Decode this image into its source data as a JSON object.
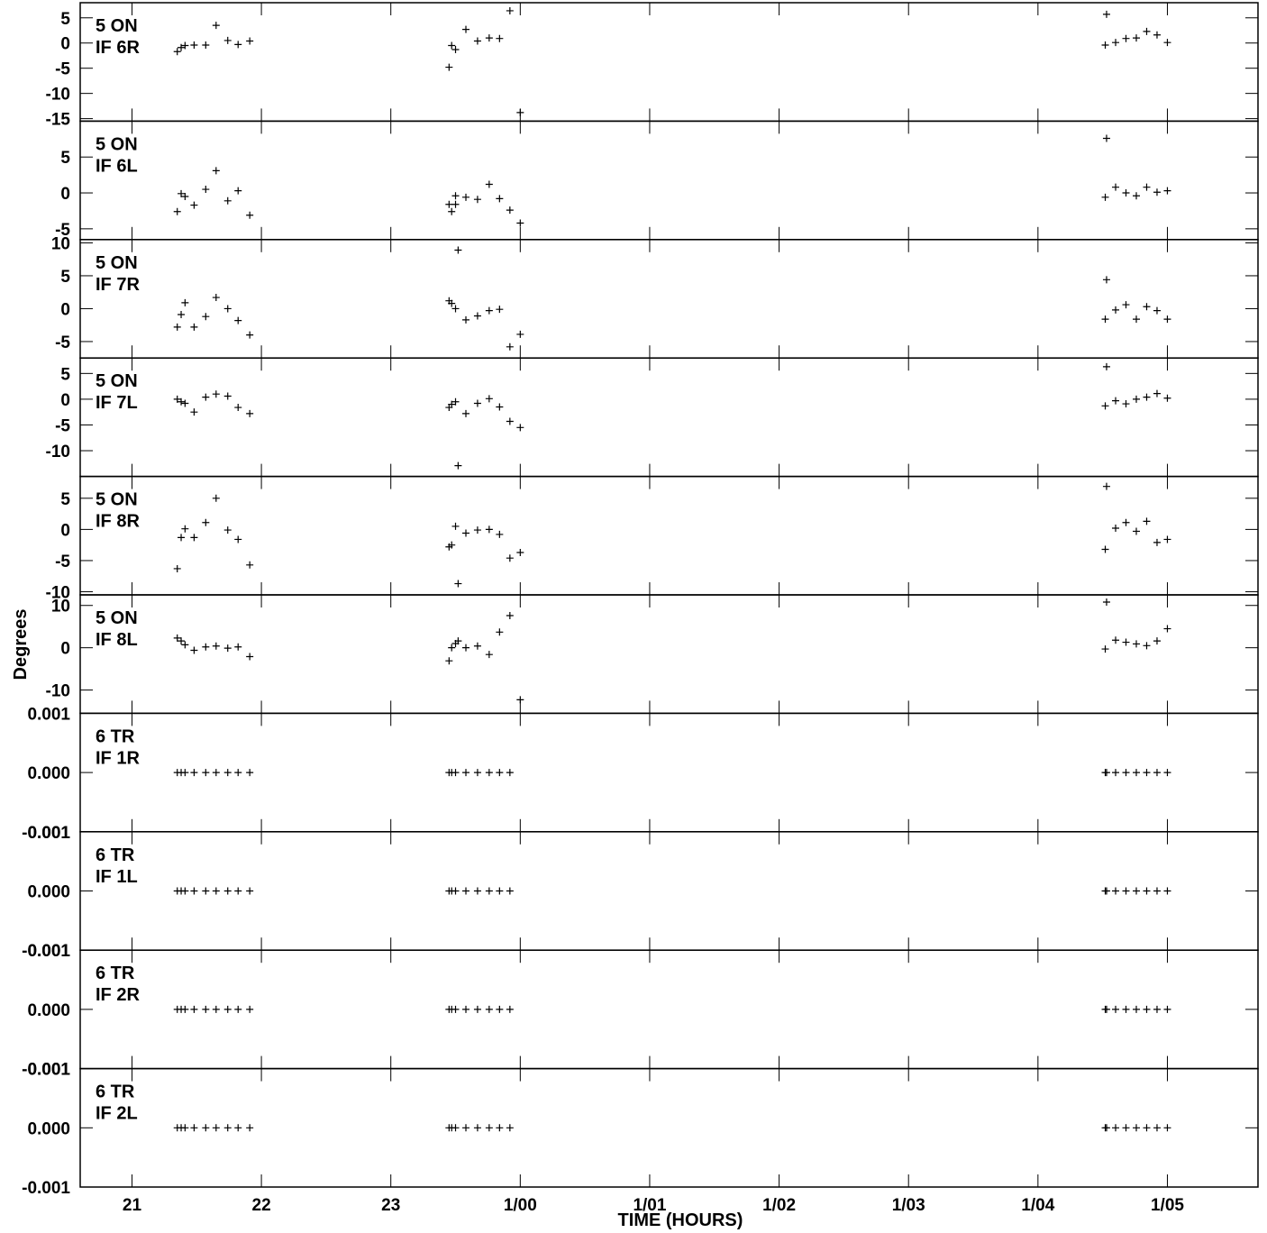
{
  "chart_data": {
    "type": "scatter",
    "xlabel": "TIME (HOURS)",
    "ylabel": "Degrees",
    "x_unit": "hours",
    "xlim": [
      20.6,
      29.7
    ],
    "x_ticks": [
      {
        "value": 21,
        "label": "21"
      },
      {
        "value": 22,
        "label": "22"
      },
      {
        "value": 23,
        "label": "23"
      },
      {
        "value": 24,
        "label": "1/00"
      },
      {
        "value": 25,
        "label": "1/01"
      },
      {
        "value": 26,
        "label": "1/02"
      },
      {
        "value": 27,
        "label": "1/03"
      },
      {
        "value": 28,
        "label": "1/04"
      },
      {
        "value": 29,
        "label": "1/05"
      }
    ],
    "marker": "+",
    "panels": [
      {
        "label1": "5 ON",
        "label2": "IF 6R",
        "ylim": [
          -15.5,
          8
        ],
        "yticks": [
          5,
          0,
          -5,
          -10,
          -15
        ],
        "ytick_labels": [
          "5",
          "0",
          "-5",
          "-10",
          "-15"
        ],
        "points": [
          [
            21.35,
            -1.7
          ],
          [
            21.38,
            -0.9
          ],
          [
            21.41,
            -0.5
          ],
          [
            21.48,
            -0.4
          ],
          [
            21.57,
            -0.4
          ],
          [
            21.65,
            3.5
          ],
          [
            21.74,
            0.5
          ],
          [
            21.82,
            -0.3
          ],
          [
            21.91,
            0.4
          ],
          [
            23.45,
            -4.8
          ],
          [
            23.47,
            -0.5
          ],
          [
            23.5,
            -1.3
          ],
          [
            23.58,
            2.7
          ],
          [
            23.67,
            0.4
          ],
          [
            23.76,
            1.0
          ],
          [
            23.84,
            0.9
          ],
          [
            23.92,
            6.4
          ],
          [
            24.0,
            -13.8
          ],
          [
            28.53,
            5.7
          ],
          [
            28.52,
            -0.4
          ],
          [
            28.6,
            0.1
          ],
          [
            28.68,
            0.9
          ],
          [
            28.76,
            1.0
          ],
          [
            28.84,
            2.3
          ],
          [
            28.92,
            1.6
          ],
          [
            29.0,
            0.1
          ]
        ]
      },
      {
        "label1": "5 ON",
        "label2": "IF 6L",
        "ylim": [
          -6.5,
          10
        ],
        "yticks": [
          5,
          0,
          -5
        ],
        "ytick_labels": [
          "5",
          "0",
          "-5"
        ],
        "points": [
          [
            21.35,
            -2.6
          ],
          [
            21.38,
            -0.1
          ],
          [
            21.41,
            -0.5
          ],
          [
            21.48,
            -1.7
          ],
          [
            21.57,
            0.5
          ],
          [
            21.65,
            3.1
          ],
          [
            21.74,
            -1.1
          ],
          [
            21.82,
            0.3
          ],
          [
            21.91,
            -3.1
          ],
          [
            23.45,
            -1.6
          ],
          [
            23.47,
            -2.6
          ],
          [
            23.5,
            -0.4
          ],
          [
            23.5,
            -1.6
          ],
          [
            23.58,
            -0.6
          ],
          [
            23.67,
            -0.9
          ],
          [
            23.76,
            1.2
          ],
          [
            23.84,
            -0.8
          ],
          [
            23.92,
            -2.4
          ],
          [
            24.0,
            -4.2
          ],
          [
            28.53,
            7.6
          ],
          [
            28.52,
            -0.6
          ],
          [
            28.6,
            0.8
          ],
          [
            28.68,
            0.0
          ],
          [
            28.76,
            -0.4
          ],
          [
            28.84,
            0.8
          ],
          [
            28.92,
            0.1
          ],
          [
            29.0,
            0.3
          ]
        ]
      },
      {
        "label1": "5 ON",
        "label2": "IF 7R",
        "ylim": [
          -7.5,
          10.5
        ],
        "yticks": [
          10,
          5,
          0,
          -5
        ],
        "ytick_labels": [
          "10",
          "5",
          "0",
          "-5"
        ],
        "points": [
          [
            21.35,
            -2.8
          ],
          [
            21.38,
            -0.9
          ],
          [
            21.41,
            0.9
          ],
          [
            21.48,
            -2.8
          ],
          [
            21.57,
            -1.2
          ],
          [
            21.65,
            1.7
          ],
          [
            21.74,
            0.0
          ],
          [
            21.82,
            -1.8
          ],
          [
            21.91,
            -4.0
          ],
          [
            23.45,
            1.2
          ],
          [
            23.47,
            0.8
          ],
          [
            23.5,
            0.0
          ],
          [
            23.52,
            8.9
          ],
          [
            23.58,
            -1.7
          ],
          [
            23.67,
            -1.1
          ],
          [
            23.76,
            -0.3
          ],
          [
            23.84,
            -0.1
          ],
          [
            23.92,
            -5.8
          ],
          [
            24.0,
            -3.9
          ],
          [
            28.53,
            4.4
          ],
          [
            28.52,
            -1.6
          ],
          [
            28.6,
            -0.2
          ],
          [
            28.68,
            0.6
          ],
          [
            28.76,
            -1.6
          ],
          [
            28.84,
            0.3
          ],
          [
            28.92,
            -0.3
          ],
          [
            29.0,
            -1.6
          ]
        ]
      },
      {
        "label1": "5 ON",
        "label2": "IF 7L",
        "ylim": [
          -15,
          8
        ],
        "yticks": [
          5,
          0,
          -5,
          -10
        ],
        "ytick_labels": [
          "5",
          "0",
          "-5",
          "-10"
        ],
        "points": [
          [
            21.35,
            0.0
          ],
          [
            21.38,
            -0.5
          ],
          [
            21.41,
            -0.8
          ],
          [
            21.48,
            -2.5
          ],
          [
            21.57,
            0.4
          ],
          [
            21.65,
            1.0
          ],
          [
            21.74,
            0.6
          ],
          [
            21.82,
            -1.6
          ],
          [
            21.91,
            -2.8
          ],
          [
            23.45,
            -1.6
          ],
          [
            23.47,
            -1.0
          ],
          [
            23.5,
            -0.5
          ],
          [
            23.52,
            -12.9
          ],
          [
            23.58,
            -2.8
          ],
          [
            23.67,
            -0.8
          ],
          [
            23.76,
            0.1
          ],
          [
            23.84,
            -1.5
          ],
          [
            23.92,
            -4.3
          ],
          [
            24.0,
            -5.5
          ],
          [
            28.53,
            6.3
          ],
          [
            28.52,
            -1.3
          ],
          [
            28.6,
            -0.3
          ],
          [
            28.68,
            -0.9
          ],
          [
            28.76,
            0.0
          ],
          [
            28.84,
            0.4
          ],
          [
            28.92,
            1.1
          ],
          [
            29.0,
            0.2
          ]
        ]
      },
      {
        "label1": "5 ON",
        "label2": "IF 8R",
        "ylim": [
          -10.5,
          8.5
        ],
        "yticks": [
          5,
          0,
          -5,
          -10
        ],
        "ytick_labels": [
          "5",
          "0",
          "-5",
          "-10"
        ],
        "points": [
          [
            21.35,
            -6.3
          ],
          [
            21.38,
            -1.3
          ],
          [
            21.41,
            0.1
          ],
          [
            21.48,
            -1.3
          ],
          [
            21.57,
            1.1
          ],
          [
            21.65,
            5.0
          ],
          [
            21.74,
            -0.1
          ],
          [
            21.82,
            -1.6
          ],
          [
            21.91,
            -5.7
          ],
          [
            23.45,
            -2.8
          ],
          [
            23.47,
            -2.5
          ],
          [
            23.5,
            0.5
          ],
          [
            23.52,
            -8.7
          ],
          [
            23.58,
            -0.6
          ],
          [
            23.67,
            -0.1
          ],
          [
            23.76,
            0.0
          ],
          [
            23.84,
            -0.8
          ],
          [
            23.92,
            -4.6
          ],
          [
            24.0,
            -3.7
          ],
          [
            28.53,
            6.9
          ],
          [
            28.52,
            -3.2
          ],
          [
            28.6,
            0.2
          ],
          [
            28.68,
            1.1
          ],
          [
            28.76,
            -0.3
          ],
          [
            28.84,
            1.3
          ],
          [
            28.92,
            -2.1
          ],
          [
            29.0,
            -1.6
          ]
        ]
      },
      {
        "label1": "5 ON",
        "label2": "IF 8L",
        "ylim": [
          -15.5,
          12.5
        ],
        "yticks": [
          10,
          0,
          -10
        ],
        "ytick_labels": [
          "10",
          "0",
          "-10"
        ],
        "points": [
          [
            21.35,
            2.3
          ],
          [
            21.38,
            1.6
          ],
          [
            21.41,
            0.7
          ],
          [
            21.48,
            -0.6
          ],
          [
            21.57,
            0.2
          ],
          [
            21.65,
            0.4
          ],
          [
            21.74,
            -0.1
          ],
          [
            21.82,
            0.2
          ],
          [
            21.91,
            -2.1
          ],
          [
            23.45,
            -3.1
          ],
          [
            23.47,
            0.0
          ],
          [
            23.5,
            1.0
          ],
          [
            23.52,
            1.6
          ],
          [
            23.58,
            0.0
          ],
          [
            23.67,
            0.4
          ],
          [
            23.76,
            -1.6
          ],
          [
            23.84,
            3.7
          ],
          [
            23.92,
            7.6
          ],
          [
            24.0,
            -12.3
          ],
          [
            28.53,
            10.8
          ],
          [
            28.52,
            -0.3
          ],
          [
            28.6,
            1.8
          ],
          [
            28.68,
            1.3
          ],
          [
            28.76,
            0.9
          ],
          [
            28.84,
            0.5
          ],
          [
            28.92,
            1.6
          ],
          [
            29.0,
            4.5
          ]
        ]
      },
      {
        "label1": "6 TR",
        "label2": "IF 1R",
        "ylim": [
          -0.001,
          0.001
        ],
        "yticks": [
          0.001,
          0.0,
          -0.001
        ],
        "ytick_labels": [
          "0.001",
          "0.000",
          "-0.001"
        ],
        "points": [
          [
            21.35,
            0
          ],
          [
            21.38,
            0
          ],
          [
            21.41,
            0
          ],
          [
            21.48,
            0
          ],
          [
            21.57,
            0
          ],
          [
            21.65,
            0
          ],
          [
            21.74,
            0
          ],
          [
            21.82,
            0
          ],
          [
            21.91,
            0
          ],
          [
            23.45,
            0
          ],
          [
            23.47,
            0
          ],
          [
            23.5,
            0
          ],
          [
            23.58,
            0
          ],
          [
            23.67,
            0
          ],
          [
            23.76,
            0
          ],
          [
            23.84,
            0
          ],
          [
            23.92,
            0
          ],
          [
            28.52,
            0
          ],
          [
            28.53,
            0
          ],
          [
            28.6,
            0
          ],
          [
            28.68,
            0
          ],
          [
            28.76,
            0
          ],
          [
            28.84,
            0
          ],
          [
            28.92,
            0
          ],
          [
            29.0,
            0
          ]
        ]
      },
      {
        "label1": "6 TR",
        "label2": "IF 1L",
        "ylim": [
          -0.001,
          0.001
        ],
        "yticks": [
          0.001,
          0.0,
          -0.001
        ],
        "ytick_labels": [
          "0.001",
          "0.000",
          "-0.001"
        ],
        "points": [
          [
            21.35,
            0
          ],
          [
            21.38,
            0
          ],
          [
            21.41,
            0
          ],
          [
            21.48,
            0
          ],
          [
            21.57,
            0
          ],
          [
            21.65,
            0
          ],
          [
            21.74,
            0
          ],
          [
            21.82,
            0
          ],
          [
            21.91,
            0
          ],
          [
            23.45,
            0
          ],
          [
            23.47,
            0
          ],
          [
            23.5,
            0
          ],
          [
            23.58,
            0
          ],
          [
            23.67,
            0
          ],
          [
            23.76,
            0
          ],
          [
            23.84,
            0
          ],
          [
            23.92,
            0
          ],
          [
            28.52,
            0
          ],
          [
            28.53,
            0
          ],
          [
            28.6,
            0
          ],
          [
            28.68,
            0
          ],
          [
            28.76,
            0
          ],
          [
            28.84,
            0
          ],
          [
            28.92,
            0
          ],
          [
            29.0,
            0
          ]
        ]
      },
      {
        "label1": "6 TR",
        "label2": "IF 2R",
        "ylim": [
          -0.001,
          0.001
        ],
        "yticks": [
          0.001,
          0.0,
          -0.001
        ],
        "ytick_labels": [
          "0.001",
          "0.000",
          "-0.001"
        ],
        "points": [
          [
            21.35,
            0
          ],
          [
            21.38,
            0
          ],
          [
            21.41,
            0
          ],
          [
            21.48,
            0
          ],
          [
            21.57,
            0
          ],
          [
            21.65,
            0
          ],
          [
            21.74,
            0
          ],
          [
            21.82,
            0
          ],
          [
            21.91,
            0
          ],
          [
            23.45,
            0
          ],
          [
            23.47,
            0
          ],
          [
            23.5,
            0
          ],
          [
            23.58,
            0
          ],
          [
            23.67,
            0
          ],
          [
            23.76,
            0
          ],
          [
            23.84,
            0
          ],
          [
            23.92,
            0
          ],
          [
            28.52,
            0
          ],
          [
            28.53,
            0
          ],
          [
            28.6,
            0
          ],
          [
            28.68,
            0
          ],
          [
            28.76,
            0
          ],
          [
            28.84,
            0
          ],
          [
            28.92,
            0
          ],
          [
            29.0,
            0
          ]
        ]
      },
      {
        "label1": "6 TR",
        "label2": "IF 2L",
        "ylim": [
          -0.001,
          0.001
        ],
        "yticks": [
          0.001,
          0.0,
          -0.001
        ],
        "ytick_labels": [
          "0.001",
          "0.000",
          "-0.001"
        ],
        "points": [
          [
            21.35,
            0
          ],
          [
            21.38,
            0
          ],
          [
            21.41,
            0
          ],
          [
            21.48,
            0
          ],
          [
            21.57,
            0
          ],
          [
            21.65,
            0
          ],
          [
            21.74,
            0
          ],
          [
            21.82,
            0
          ],
          [
            21.91,
            0
          ],
          [
            23.45,
            0
          ],
          [
            23.47,
            0
          ],
          [
            23.5,
            0
          ],
          [
            23.58,
            0
          ],
          [
            23.67,
            0
          ],
          [
            23.76,
            0
          ],
          [
            23.84,
            0
          ],
          [
            23.92,
            0
          ],
          [
            28.52,
            0
          ],
          [
            28.53,
            0
          ],
          [
            28.6,
            0
          ],
          [
            28.68,
            0
          ],
          [
            28.76,
            0
          ],
          [
            28.84,
            0
          ],
          [
            28.92,
            0
          ],
          [
            29.0,
            0
          ]
        ]
      }
    ]
  }
}
